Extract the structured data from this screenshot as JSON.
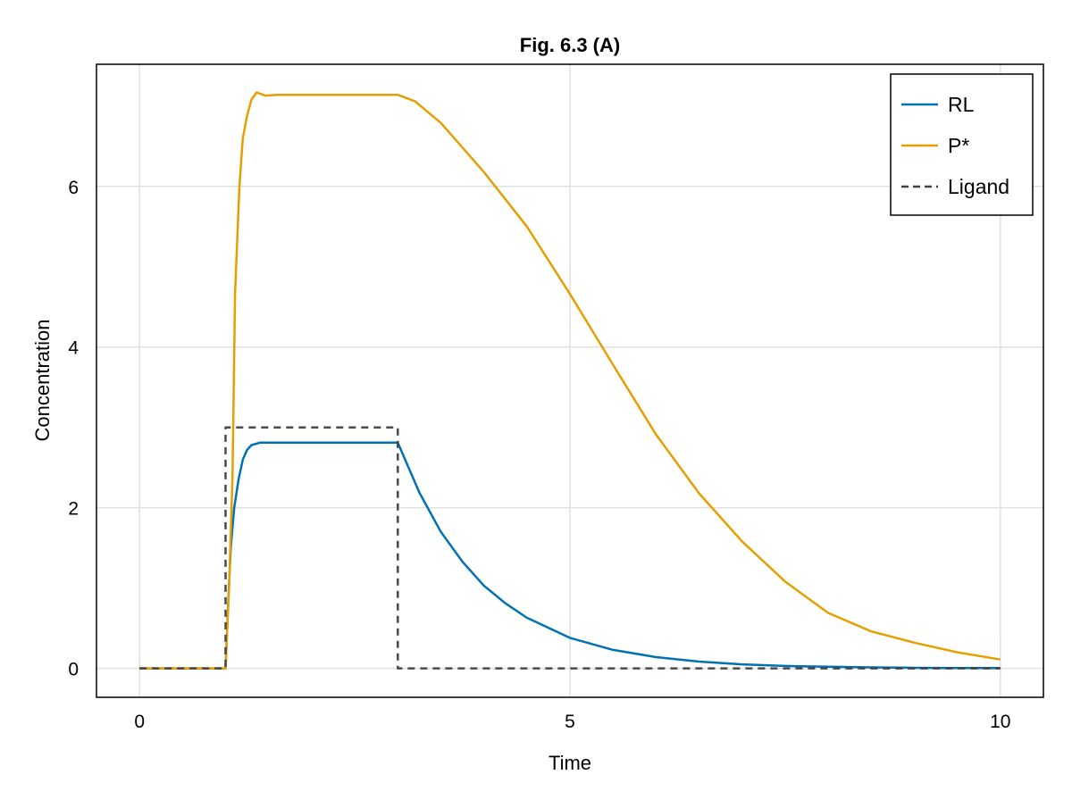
{
  "chart_data": {
    "type": "line",
    "title": "Fig. 6.3 (A)",
    "xlabel": "Time",
    "ylabel": "Concentration",
    "xlim": [
      -0.5,
      10.5
    ],
    "ylim": [
      -0.36,
      7.52
    ],
    "xticks": [
      0,
      5,
      10
    ],
    "xtick_labels": [
      "0",
      "5",
      "10"
    ],
    "yticks": [
      0,
      2,
      4,
      6
    ],
    "ytick_labels": [
      "0",
      "2",
      "4",
      "6"
    ],
    "grid": true,
    "legend_position": "top-right",
    "series": [
      {
        "name": "RL",
        "color": "#0072b2",
        "style": "solid",
        "x": [
          0,
          1,
          1.03,
          1.06,
          1.1,
          1.15,
          1.2,
          1.25,
          1.3,
          1.4,
          1.5,
          2,
          2.5,
          3,
          3.25,
          3.5,
          3.75,
          4,
          4.25,
          4.5,
          5,
          5.5,
          6,
          6.5,
          7,
          7.5,
          8,
          8.5,
          9,
          9.5,
          10
        ],
        "y": [
          0,
          0,
          0.8,
          1.5,
          2.0,
          2.35,
          2.6,
          2.72,
          2.78,
          2.81,
          2.81,
          2.81,
          2.81,
          2.81,
          2.19,
          1.7,
          1.33,
          1.03,
          0.81,
          0.63,
          0.38,
          0.23,
          0.14,
          0.085,
          0.05,
          0.03,
          0.02,
          0.012,
          0.007,
          0.004,
          0.003
        ]
      },
      {
        "name": "P*",
        "color": "#e69f00",
        "style": "solid",
        "x": [
          0,
          1,
          1.04,
          1.08,
          1.11,
          1.16,
          1.2,
          1.25,
          1.3,
          1.36,
          1.41,
          1.46,
          1.6,
          2,
          2.5,
          3,
          3.2,
          3.5,
          4,
          4.5,
          5,
          5.5,
          6,
          6.5,
          7,
          7.5,
          8,
          8.5,
          9,
          9.5,
          10
        ],
        "y": [
          0,
          0,
          1.0,
          2.4,
          4.66,
          6.0,
          6.6,
          6.88,
          7.08,
          7.17,
          7.15,
          7.13,
          7.14,
          7.14,
          7.14,
          7.14,
          7.06,
          6.79,
          6.18,
          5.5,
          4.66,
          3.78,
          2.91,
          2.18,
          1.58,
          1.08,
          0.69,
          0.46,
          0.32,
          0.2,
          0.11
        ]
      },
      {
        "name": "Ligand",
        "color": "#404040",
        "style": "dashed",
        "x": [
          0,
          1,
          1,
          3,
          3,
          10
        ],
        "y": [
          0,
          0,
          3,
          3,
          0,
          0
        ]
      }
    ]
  }
}
